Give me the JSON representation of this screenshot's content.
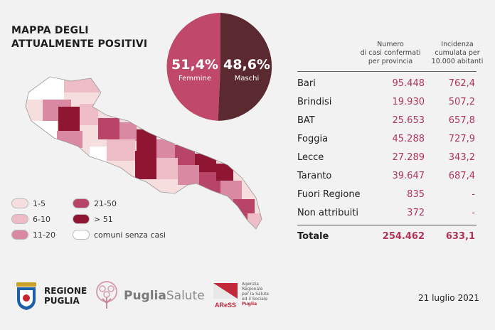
{
  "title": {
    "line1": "MAPPA DEGLI",
    "line2": "ATTUALMENTE POSITIVI"
  },
  "gender": {
    "female": {
      "pct": "51,4%",
      "label": "Femmine",
      "color": "#c0486a"
    },
    "male": {
      "pct": "48,6%",
      "label": "Maschi",
      "color": "#5b2a30"
    }
  },
  "table": {
    "col_cases": "Numero di casi confermati per provincia",
    "col_cases_lines": [
      "Numero",
      "di casi confermati",
      "per provincia"
    ],
    "col_incidence_lines": [
      "Incidenza",
      "cumulata per",
      "10.000 abitanti"
    ],
    "rows": [
      {
        "name": "Bari",
        "cases": "95.448",
        "incidence": "762,4"
      },
      {
        "name": "Brindisi",
        "cases": "19.930",
        "incidence": "507,2"
      },
      {
        "name": "BAT",
        "cases": "25.653",
        "incidence": "657,8"
      },
      {
        "name": "Foggia",
        "cases": "45.288",
        "incidence": "727,9"
      },
      {
        "name": "Lecce",
        "cases": "27.289",
        "incidence": "343,2"
      },
      {
        "name": "Taranto",
        "cases": "39.647",
        "incidence": "687,4"
      },
      {
        "name": "Fuori Regione",
        "cases": "835",
        "incidence": "-"
      },
      {
        "name": "Non attribuiti",
        "cases": "372",
        "incidence": "-"
      }
    ],
    "total": {
      "name": "Totale",
      "cases": "254.462",
      "incidence": "633,1"
    }
  },
  "legend": [
    {
      "label": "1-5",
      "color": "#f7dede"
    },
    {
      "label": "6-10",
      "color": "#eebcc6"
    },
    {
      "label": "11-20",
      "color": "#d98aa2"
    },
    {
      "label": "21-50",
      "color": "#b84468"
    },
    {
      "label": "> 51",
      "color": "#8e1633"
    },
    {
      "label": "comuni senza casi",
      "color": "#ffffff"
    }
  ],
  "logos": {
    "regione": {
      "line1": "REGIONE",
      "line2": "PUGLIA"
    },
    "puglia_salute": {
      "bold": "Puglia",
      "light": "Salute"
    },
    "aress": {
      "mark": "AReSS",
      "lines": [
        "Agenzia",
        "Regionale",
        "per la Salute",
        "ed il Sociale",
        "Puglia"
      ]
    }
  },
  "date": "21 luglio 2021"
}
